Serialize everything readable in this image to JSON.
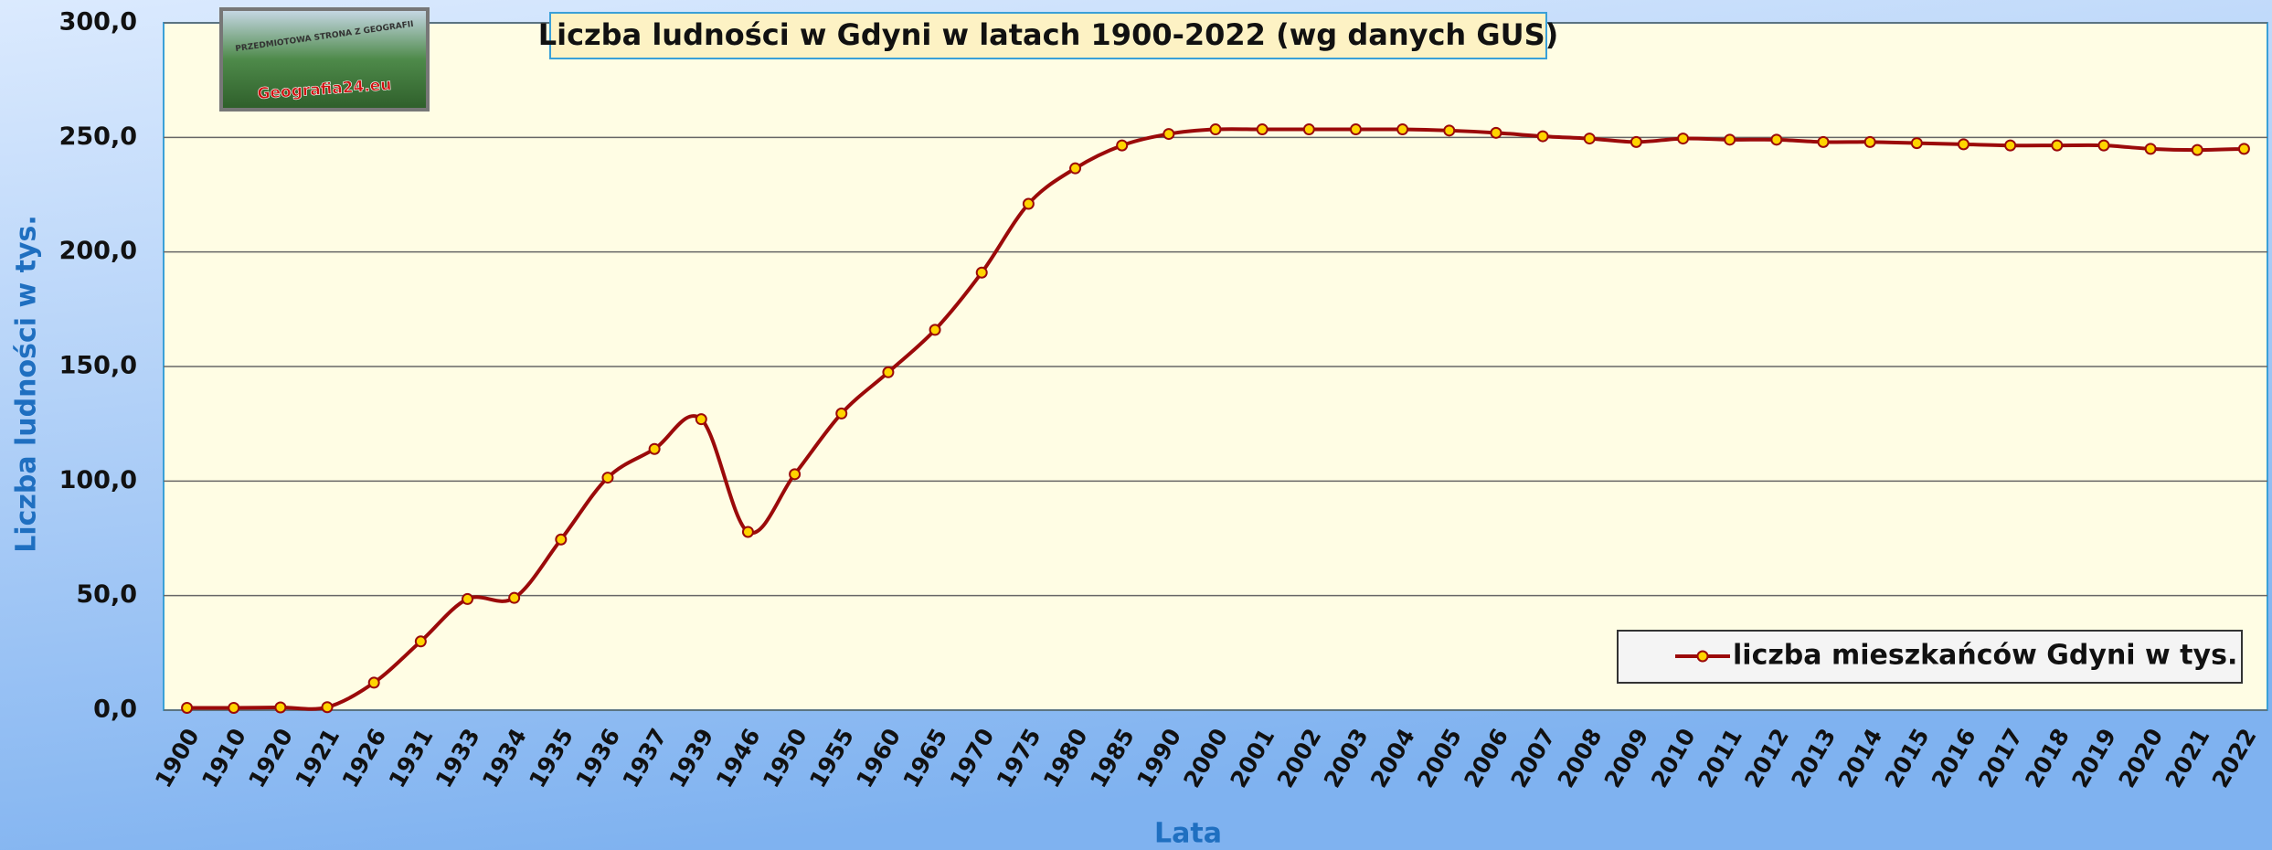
{
  "chart_data": {
    "type": "line",
    "title": "Liczba ludności w Gdyni w latach 1900-2022 (wg danych GUS)",
    "logo_top": "PRZEDMIOTOWA STRONA Z GEOGRAFII",
    "logo_text": "Geografia24.eu",
    "x_label": "Lata",
    "y_label": "Liczba ludności w tys.",
    "categories": [
      "1900",
      "1910",
      "1920",
      "1921",
      "1926",
      "1931",
      "1933",
      "1934",
      "1935",
      "1936",
      "1937",
      "1939",
      "1946",
      "1950",
      "1955",
      "1960",
      "1965",
      "1970",
      "1975",
      "1980",
      "1985",
      "1990",
      "2000",
      "2001",
      "2002",
      "2003",
      "2004",
      "2005",
      "2006",
      "2007",
      "2008",
      "2009",
      "2010",
      "2011",
      "2012",
      "2013",
      "2014",
      "2015",
      "2016",
      "2017",
      "2018",
      "2019",
      "2020",
      "2021",
      "2022"
    ],
    "series": [
      {
        "name": "liczba mieszkańców Gdyni w tys.",
        "color": "#9b0a0a",
        "marker_color": "#ffd400",
        "values": [
          1.0,
          1.0,
          1.2,
          1.3,
          12.0,
          30.0,
          48.5,
          49.0,
          74.5,
          101.5,
          114.0,
          127.0,
          77.8,
          103.0,
          129.5,
          147.5,
          166.0,
          191.0,
          221.0,
          236.5,
          246.5,
          251.5,
          253.5,
          253.5,
          253.5,
          253.5,
          253.5,
          253.0,
          252.0,
          250.5,
          249.5,
          248.0,
          249.5,
          249.0,
          249.0,
          248.0,
          248.0,
          247.5,
          247.0,
          246.5,
          246.5,
          246.5,
          245.0,
          244.5,
          245.0
        ]
      }
    ],
    "ylim": [
      0,
      300
    ],
    "yticks": [
      {
        "value": 0,
        "label": "0,0"
      },
      {
        "value": 50,
        "label": "50,0"
      },
      {
        "value": 100,
        "label": "100,0"
      },
      {
        "value": 150,
        "label": "150,0"
      },
      {
        "value": 200,
        "label": "200,0"
      },
      {
        "value": 250,
        "label": "250,0"
      },
      {
        "value": 300,
        "label": "300,0"
      }
    ],
    "grid": true,
    "legend": "lower right"
  }
}
